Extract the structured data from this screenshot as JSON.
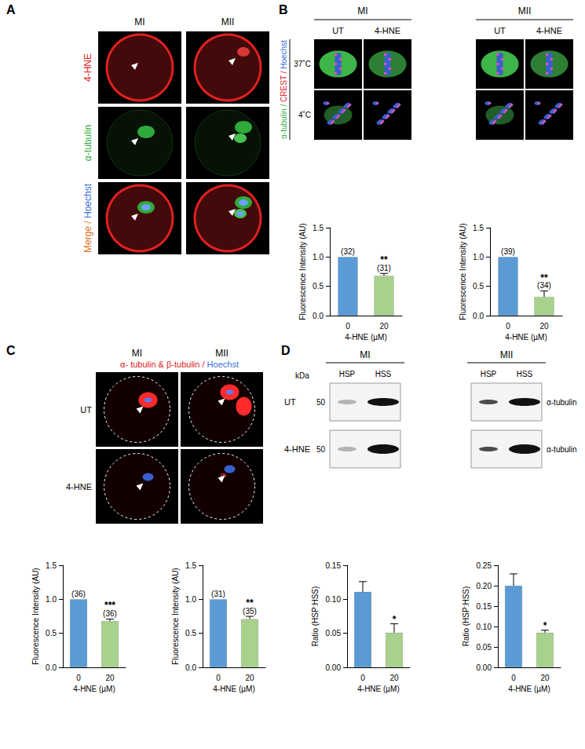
{
  "chart_data": [
    {
      "type": "bar",
      "categories": [
        "0",
        "20"
      ],
      "values": [
        1.0,
        0.68
      ],
      "errors": [
        0,
        0.04
      ],
      "n_labels": [
        "(32)",
        "(31)"
      ],
      "significance": [
        null,
        "**"
      ],
      "colors": [
        "#5b9bd5",
        "#a9d18e"
      ],
      "x_label": "4-HNE (µM)",
      "y_label": "Fluorescence Intensity (AU)",
      "ylim": [
        0,
        1.5
      ],
      "yticks": [
        {
          "value": 0,
          "label": "0.0"
        },
        0.5,
        {
          "value": 1,
          "label": "1.0"
        },
        1.5
      ],
      "grid": false
    },
    {
      "type": "bar",
      "categories": [
        "0",
        "20"
      ],
      "values": [
        1.0,
        0.32
      ],
      "errors": [
        0,
        0.1
      ],
      "n_labels": [
        "(39)",
        "(34)"
      ],
      "significance": [
        null,
        "**"
      ],
      "colors": [
        "#5b9bd5",
        "#a9d18e"
      ],
      "x_label": "4-HNE (µM)",
      "y_label": "Fluorescence Intensity (AU)",
      "ylim": [
        0,
        1.5
      ],
      "yticks": [
        {
          "value": 0,
          "label": "0.0"
        },
        0.5,
        {
          "value": 1,
          "label": "1.0"
        },
        1.5
      ],
      "grid": false
    },
    {
      "type": "bar",
      "categories": [
        "0",
        "20"
      ],
      "values": [
        1.0,
        0.68
      ],
      "errors": [
        0,
        0.03
      ],
      "n_labels": [
        "(36)",
        "(36)"
      ],
      "significance": [
        null,
        "***"
      ],
      "colors": [
        "#5b9bd5",
        "#a9d18e"
      ],
      "x_label": "4-HNE (µM)",
      "y_label": "Fluorescence Intensity (AU)",
      "ylim": [
        0,
        1.5
      ],
      "yticks": [
        {
          "value": 0,
          "label": "0.0"
        },
        0.5,
        {
          "value": 1,
          "label": "1.0"
        },
        1.5
      ],
      "grid": false
    },
    {
      "type": "bar",
      "categories": [
        "0",
        "20"
      ],
      "values": [
        1.0,
        0.71
      ],
      "errors": [
        0,
        0.04
      ],
      "n_labels": [
        "(31)",
        "(35)"
      ],
      "significance": [
        null,
        "**"
      ],
      "colors": [
        "#5b9bd5",
        "#a9d18e"
      ],
      "x_label": "4-HNE (µM)",
      "y_label": "Fluorescence Intensity (AU)",
      "ylim": [
        0,
        1.5
      ],
      "yticks": [
        {
          "value": 0,
          "label": "0.0"
        },
        0.5,
        {
          "value": 1,
          "label": "1.0"
        },
        1.5
      ],
      "grid": false
    },
    {
      "type": "bar",
      "categories": [
        "0",
        "20"
      ],
      "values": [
        0.111,
        0.051
      ],
      "errors": [
        0.015,
        0.013
      ],
      "significance": [
        null,
        "*"
      ],
      "colors": [
        "#5b9bd5",
        "#a9d18e"
      ],
      "x_label": "4-HNE (µM)",
      "y_label": "Ratio (HSP:HSS)",
      "ylim": [
        0,
        0.15
      ],
      "yticks": [
        {
          "value": 0,
          "label": "0.00"
        },
        0.05,
        {
          "value": 0.1,
          "label": "0.10"
        },
        0.15
      ],
      "grid": false
    },
    {
      "type": "bar",
      "categories": [
        "0",
        "20"
      ],
      "values": [
        0.2,
        0.085
      ],
      "errors": [
        0.029,
        0.006
      ],
      "significance": [
        null,
        "*"
      ],
      "colors": [
        "#5b9bd5",
        "#a9d18e"
      ],
      "x_label": "4-HNE (µM)",
      "y_label": "Ratio (HSP:HSS)",
      "ylim": [
        0,
        0.25
      ],
      "yticks": [
        {
          "value": 0,
          "label": "0.00"
        },
        0.05,
        {
          "value": 0.1,
          "label": "0.10"
        },
        0.15,
        {
          "value": 0.2,
          "label": "0.20"
        },
        0.25
      ],
      "grid": false
    }
  ],
  "panels": {
    "A": {
      "letter": "A",
      "columns": [
        "MI",
        "MII"
      ],
      "rows": [
        [
          "4-HNE"
        ],
        [
          "α-tubulin"
        ],
        [
          "Merge /",
          "Hoechst"
        ]
      ]
    },
    "B": {
      "letter": "B",
      "groups": [
        "MI",
        "MII"
      ],
      "columns": [
        "UT",
        "4-HNE"
      ],
      "rows": [
        "37˚C",
        "4˚C"
      ],
      "stain": [
        "α-tubulin /",
        "CREST /",
        "Hoechst"
      ]
    },
    "C": {
      "letter": "C",
      "columns": [
        "MI",
        "MII"
      ],
      "rows": [
        "UT",
        "4-HNE"
      ],
      "stain": [
        "α- tubulin & β-tubulin /",
        "Hoechst"
      ]
    },
    "D": {
      "letter": "D",
      "groups": [
        "MI",
        "MII"
      ],
      "lanes": [
        "HSP",
        "HSS"
      ],
      "rows": [
        "UT",
        "4-HNE"
      ],
      "unit": "kDa",
      "ladder": 50,
      "protein": "α-tubulin"
    }
  }
}
